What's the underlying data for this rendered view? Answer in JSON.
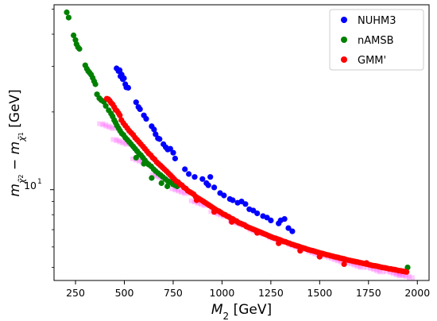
{
  "chart_data": {
    "type": "scatter",
    "xlabel_var": "M",
    "xlabel_sub": "2",
    "xlabel_unit": " [GeV]",
    "ylabel": "m_χ̃₂⁰ − m_χ̃₁⁰ [GeV]",
    "ylabel_main": "m",
    "ylabel_sub1": "χ̃",
    "ylabel_sub1_sup": "0",
    "ylabel_sub1_sub": "2",
    "ylabel_minus": " − m",
    "ylabel_sub2": "χ̃",
    "ylabel_sub2_sup": "0",
    "ylabel_sub2_sub": "1",
    "ylabel_unit": " [GeV]",
    "xlim": [
      140,
      2060
    ],
    "ylim": [
      4.45,
      52
    ],
    "yscale": "log",
    "xticks": [
      250,
      500,
      750,
      1000,
      1250,
      1500,
      1750,
      2000
    ],
    "xtick_labels": [
      "250",
      "500",
      "750",
      "1000",
      "1250",
      "1500",
      "1750",
      "2000"
    ],
    "ytick_major": [
      10
    ],
    "ytick_major_label_base": "10",
    "ytick_major_label_exp": "1",
    "ytick_minor": [
      5,
      6,
      7,
      8,
      9,
      20,
      30,
      40,
      50
    ],
    "grid": false,
    "legend_position": "top-right",
    "series": [
      {
        "name": "NUHM3",
        "color": "#0000ff",
        "points": [
          [
            460,
            29.5
          ],
          [
            470,
            28.8
          ],
          [
            476,
            29
          ],
          [
            480,
            27.5
          ],
          [
            486,
            27.9
          ],
          [
            492,
            26.8
          ],
          [
            498,
            27.0
          ],
          [
            505,
            25.6
          ],
          [
            510,
            24.9
          ],
          [
            520,
            24.8
          ],
          [
            560,
            21.8
          ],
          [
            572,
            20.9
          ],
          [
            580,
            20.5
          ],
          [
            600,
            19.4
          ],
          [
            612,
            18.8
          ],
          [
            640,
            17.6
          ],
          [
            652,
            17.1
          ],
          [
            660,
            16.4
          ],
          [
            672,
            15.8
          ],
          [
            680,
            15.7
          ],
          [
            700,
            15.0
          ],
          [
            712,
            14.6
          ],
          [
            722,
            14.3
          ],
          [
            735,
            14.4
          ],
          [
            750,
            13.9
          ],
          [
            760,
            13.2
          ],
          [
            810,
            12.0
          ],
          [
            830,
            11.5
          ],
          [
            860,
            11.2
          ],
          [
            900,
            11.0
          ],
          [
            920,
            10.6
          ],
          [
            930,
            10.4
          ],
          [
            940,
            11.2
          ],
          [
            960,
            10.2
          ],
          [
            990,
            9.7
          ],
          [
            1010,
            9.5
          ],
          [
            1040,
            9.2
          ],
          [
            1055,
            9.1
          ],
          [
            1080,
            8.9
          ],
          [
            1100,
            9.0
          ],
          [
            1120,
            8.8
          ],
          [
            1140,
            8.4
          ],
          [
            1160,
            8.3
          ],
          [
            1180,
            8.1
          ],
          [
            1210,
            7.9
          ],
          [
            1230,
            7.8
          ],
          [
            1250,
            7.6
          ],
          [
            1290,
            7.4
          ],
          [
            1300,
            7.6
          ],
          [
            1320,
            7.7
          ],
          [
            1340,
            7.1
          ],
          [
            1360,
            6.9
          ]
        ]
      },
      {
        "name": "nAMSB",
        "color": "#008000",
        "points": [
          [
            205,
            48.6
          ],
          [
            215,
            46.4
          ],
          [
            240,
            39.6
          ],
          [
            250,
            38.0
          ],
          [
            255,
            36.6
          ],
          [
            263,
            35.6
          ],
          [
            270,
            35.1
          ],
          [
            300,
            30.3
          ],
          [
            308,
            29.4
          ],
          [
            315,
            28.8
          ],
          [
            322,
            28.4
          ],
          [
            330,
            27.9
          ],
          [
            338,
            27.1
          ],
          [
            345,
            26.3
          ],
          [
            352,
            25.6
          ],
          [
            360,
            23.4
          ],
          [
            372,
            22.6
          ],
          [
            382,
            22.2
          ],
          [
            395,
            21.9
          ],
          [
            405,
            21.1
          ],
          [
            420,
            20.3
          ],
          [
            432,
            19.7
          ],
          [
            440,
            19.2
          ],
          [
            448,
            18.6
          ],
          [
            455,
            18.2
          ],
          [
            462,
            17.7
          ],
          [
            470,
            17.3
          ],
          [
            478,
            16.9
          ],
          [
            487,
            16.5
          ],
          [
            495,
            16.3
          ],
          [
            505,
            15.9
          ],
          [
            515,
            15.6
          ],
          [
            525,
            15.3
          ],
          [
            535,
            15.0
          ],
          [
            545,
            14.7
          ],
          [
            555,
            14.4
          ],
          [
            565,
            14.1
          ],
          [
            575,
            13.8
          ],
          [
            585,
            13.6
          ],
          [
            595,
            13.3
          ],
          [
            605,
            13.0
          ],
          [
            615,
            12.7
          ],
          [
            625,
            12.5
          ],
          [
            638,
            12.3
          ],
          [
            650,
            12.0
          ],
          [
            660,
            11.8
          ],
          [
            672,
            11.6
          ],
          [
            685,
            11.4
          ],
          [
            697,
            11.2
          ],
          [
            710,
            11.0
          ],
          [
            722,
            10.8
          ],
          [
            735,
            10.7
          ],
          [
            748,
            10.5
          ],
          [
            760,
            10.4
          ],
          [
            770,
            10.3
          ],
          [
            640,
            11.1
          ],
          [
            690,
            10.6
          ],
          [
            720,
            10.3
          ],
          [
            560,
            13.3
          ],
          [
            600,
            12.6
          ],
          [
            1950,
            5.0
          ]
        ]
      },
      {
        "name": "GMM'",
        "color": "#ff0000",
        "points": [
          [
            410,
            22.5
          ],
          [
            418,
            22.4
          ],
          [
            425,
            22.1
          ],
          [
            432,
            21.7
          ],
          [
            440,
            21.4
          ],
          [
            448,
            20.9
          ],
          [
            455,
            20.4
          ],
          [
            462,
            20.2
          ],
          [
            470,
            19.8
          ],
          [
            477,
            19.4
          ],
          [
            485,
            18.6
          ],
          [
            495,
            18.1
          ],
          [
            505,
            17.7
          ],
          [
            515,
            17.3
          ],
          [
            525,
            16.9
          ],
          [
            535,
            16.6
          ],
          [
            545,
            16.3
          ],
          [
            555,
            15.9
          ],
          [
            565,
            15.6
          ],
          [
            575,
            15.3
          ],
          [
            585,
            15.0
          ],
          [
            595,
            14.7
          ],
          [
            605,
            14.4
          ],
          [
            615,
            14.1
          ],
          [
            625,
            13.8
          ],
          [
            635,
            13.6
          ],
          [
            645,
            13.3
          ],
          [
            655,
            13.1
          ],
          [
            665,
            12.8
          ],
          [
            675,
            12.6
          ],
          [
            685,
            12.4
          ],
          [
            695,
            12.2
          ],
          [
            705,
            12.0
          ],
          [
            715,
            11.8
          ],
          [
            725,
            11.6
          ],
          [
            735,
            11.4
          ],
          [
            745,
            11.2
          ],
          [
            755,
            11.0
          ],
          [
            765,
            10.8
          ],
          [
            775,
            10.7
          ],
          [
            785,
            10.5
          ],
          [
            795,
            10.4
          ],
          [
            805,
            10.2
          ],
          [
            815,
            10.1
          ],
          [
            825,
            9.9
          ],
          [
            835,
            9.8
          ],
          [
            845,
            9.7
          ],
          [
            855,
            9.6
          ],
          [
            865,
            9.4
          ],
          [
            875,
            9.3
          ],
          [
            885,
            9.2
          ],
          [
            895,
            9.1
          ],
          [
            905,
            9.0
          ],
          [
            915,
            8.9
          ],
          [
            925,
            8.8
          ],
          [
            935,
            8.7
          ],
          [
            945,
            8.6
          ],
          [
            955,
            8.5
          ],
          [
            965,
            8.4
          ],
          [
            975,
            8.3
          ],
          [
            985,
            8.25
          ],
          [
            995,
            8.15
          ],
          [
            1005,
            8.05
          ],
          [
            1015,
            8.0
          ],
          [
            1025,
            7.9
          ],
          [
            1035,
            7.85
          ],
          [
            1045,
            7.75
          ],
          [
            1055,
            7.7
          ],
          [
            1065,
            7.6
          ],
          [
            1075,
            7.55
          ],
          [
            1085,
            7.45
          ],
          [
            1095,
            7.4
          ],
          [
            1105,
            7.35
          ],
          [
            1115,
            7.3
          ],
          [
            1125,
            7.2
          ],
          [
            1135,
            7.15
          ],
          [
            1145,
            7.1
          ],
          [
            1155,
            7.05
          ],
          [
            1165,
            7.0
          ],
          [
            1175,
            6.95
          ],
          [
            1185,
            6.9
          ],
          [
            1195,
            6.85
          ],
          [
            1205,
            6.8
          ],
          [
            1215,
            6.75
          ],
          [
            1225,
            6.7
          ],
          [
            1235,
            6.65
          ],
          [
            1245,
            6.6
          ],
          [
            1255,
            6.55
          ],
          [
            1265,
            6.5
          ],
          [
            1275,
            6.48
          ],
          [
            1285,
            6.43
          ],
          [
            1295,
            6.4
          ],
          [
            1305,
            6.35
          ],
          [
            1315,
            6.3
          ],
          [
            1325,
            6.28
          ],
          [
            1335,
            6.23
          ],
          [
            1345,
            6.2
          ],
          [
            1355,
            6.15
          ],
          [
            1365,
            6.12
          ],
          [
            1375,
            6.08
          ],
          [
            1385,
            6.05
          ],
          [
            1395,
            6.02
          ],
          [
            1405,
            5.98
          ],
          [
            1415,
            5.95
          ],
          [
            1425,
            5.92
          ],
          [
            1435,
            5.88
          ],
          [
            1445,
            5.85
          ],
          [
            1455,
            5.82
          ],
          [
            1465,
            5.8
          ],
          [
            1475,
            5.77
          ],
          [
            1485,
            5.74
          ],
          [
            1495,
            5.71
          ],
          [
            1505,
            5.68
          ],
          [
            1515,
            5.66
          ],
          [
            1525,
            5.63
          ],
          [
            1535,
            5.6
          ],
          [
            1545,
            5.58
          ],
          [
            1555,
            5.55
          ],
          [
            1565,
            5.53
          ],
          [
            1575,
            5.5
          ],
          [
            1585,
            5.48
          ],
          [
            1595,
            5.46
          ],
          [
            1605,
            5.43
          ],
          [
            1615,
            5.41
          ],
          [
            1625,
            5.39
          ],
          [
            1635,
            5.36
          ],
          [
            1645,
            5.34
          ],
          [
            1655,
            5.32
          ],
          [
            1665,
            5.3
          ],
          [
            1675,
            5.28
          ],
          [
            1685,
            5.26
          ],
          [
            1695,
            5.24
          ],
          [
            1705,
            5.22
          ],
          [
            1715,
            5.2
          ],
          [
            1725,
            5.18
          ],
          [
            1735,
            5.16
          ],
          [
            1745,
            5.14
          ],
          [
            1755,
            5.12
          ],
          [
            1765,
            5.1
          ],
          [
            1775,
            5.08
          ],
          [
            1785,
            5.07
          ],
          [
            1795,
            5.05
          ],
          [
            1805,
            5.03
          ],
          [
            1815,
            5.01
          ],
          [
            1825,
            4.99
          ],
          [
            1835,
            4.98
          ],
          [
            1845,
            4.96
          ],
          [
            1855,
            4.94
          ],
          [
            1865,
            4.93
          ],
          [
            1875,
            4.91
          ],
          [
            1885,
            4.9
          ],
          [
            1895,
            4.88
          ],
          [
            1905,
            4.86
          ],
          [
            1915,
            4.85
          ],
          [
            1925,
            4.83
          ],
          [
            1935,
            4.82
          ],
          [
            1945,
            4.8
          ],
          [
            1625,
            5.15
          ],
          [
            1740,
            5.2
          ],
          [
            1500,
            5.5
          ],
          [
            1400,
            5.8
          ],
          [
            1290,
            6.2
          ],
          [
            1180,
            6.8
          ],
          [
            1050,
            7.5
          ],
          [
            960,
            8.2
          ],
          [
            870,
            9.1
          ]
        ]
      }
    ],
    "magenta_band": {
      "color": "#ff66ff",
      "x": [
        430,
        500,
        600,
        700,
        800,
        900,
        1000,
        1100,
        1200,
        1300,
        1400,
        1500,
        1600,
        1700,
        1800,
        1900,
        1950
      ],
      "y": [
        17.5,
        15.2,
        12.8,
        11.1,
        9.8,
        8.8,
        8.0,
        7.35,
        6.8,
        6.35,
        5.95,
        5.6,
        5.32,
        5.07,
        4.87,
        4.7,
        4.63
      ]
    }
  }
}
